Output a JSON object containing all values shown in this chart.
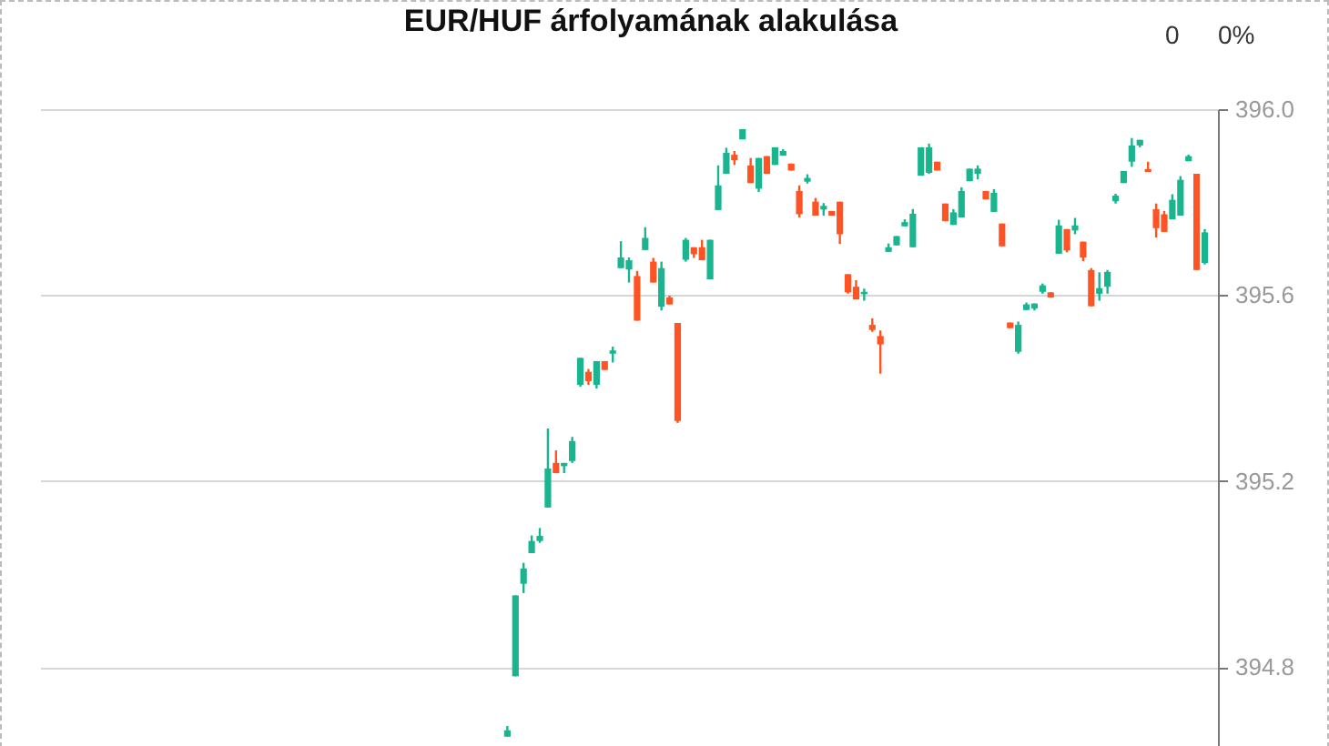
{
  "chart_data": {
    "type": "candlestick",
    "title": "EUR/HUF árfolyamának alakulása",
    "annotations": [
      "0",
      "0%"
    ],
    "categories": [
      null,
      null,
      null,
      null,
      null,
      null,
      null,
      null,
      null,
      null,
      null,
      null,
      null,
      null,
      null,
      null,
      null,
      null,
      null,
      null,
      null,
      null,
      null,
      null,
      null,
      null,
      null,
      null,
      null,
      null,
      null,
      null,
      null,
      null,
      null,
      null,
      null,
      null,
      null,
      null,
      null,
      null,
      null,
      null,
      null,
      null,
      null,
      null,
      null,
      null,
      null,
      null,
      null,
      null,
      null,
      null,
      null,
      null,
      null,
      null,
      null,
      null,
      null,
      null,
      null,
      null,
      null,
      null,
      null,
      null,
      null,
      null,
      null,
      null,
      null,
      null,
      null,
      null,
      null,
      null,
      null,
      null,
      null,
      null,
      null,
      null,
      null,
      null,
      null,
      null,
      null,
      null,
      null,
      null,
      null,
      null,
      null,
      null,
      null,
      null,
      null,
      null,
      null,
      null,
      null,
      null,
      null,
      null,
      null,
      null,
      null,
      null,
      null,
      null,
      null,
      null,
      null,
      null,
      null,
      null,
      null,
      null,
      null,
      null,
      null,
      null,
      null,
      null,
      null,
      null,
      null,
      null,
      null,
      null,
      null,
      null,
      null,
      null,
      null,
      null,
      null,
      null,
      null
    ],
    "ohlc": [
      null,
      null,
      null,
      null,
      null,
      null,
      null,
      null,
      null,
      null,
      null,
      null,
      null,
      null,
      null,
      null,
      null,
      null,
      null,
      null,
      null,
      null,
      null,
      null,
      null,
      null,
      null,
      null,
      null,
      null,
      null,
      null,
      null,
      null,
      null,
      null,
      null,
      null,
      null,
      null,
      null,
      null,
      null,
      null,
      null,
      null,
      null,
      null,
      null,
      null,
      null,
      null,
      null,
      null,
      null,
      null,
      [
        394.65,
        394.673,
        394.65,
        394.664
      ],
      [
        394.78,
        394.954,
        394.78,
        394.954
      ],
      [
        394.979,
        395.024,
        394.959,
        395.012
      ],
      [
        395.045,
        395.083,
        395.045,
        395.071
      ],
      [
        395.071,
        395.099,
        395.067,
        395.082
      ],
      [
        395.143,
        395.313,
        395.143,
        395.227
      ],
      [
        395.239,
        395.266,
        395.217,
        395.217
      ],
      [
        395.232,
        395.239,
        395.217,
        395.239
      ],
      [
        395.243,
        395.295,
        395.239,
        395.286
      ],
      [
        395.407,
        395.465,
        395.403,
        395.465
      ],
      [
        395.435,
        395.441,
        395.407,
        395.415
      ],
      [
        395.407,
        395.458,
        395.399,
        395.458
      ],
      [
        395.458,
        395.458,
        395.439,
        395.439
      ],
      [
        395.474,
        395.489,
        395.455,
        395.481
      ],
      [
        395.658,
        395.716,
        395.658,
        395.681
      ],
      [
        395.655,
        395.681,
        395.627,
        395.675
      ],
      [
        395.641,
        395.652,
        395.545,
        395.545
      ],
      [
        395.697,
        395.746,
        395.697,
        395.723
      ],
      [
        395.672,
        395.68,
        395.627,
        395.627
      ],
      [
        395.575,
        395.672,
        395.567,
        395.658
      ],
      [
        395.595,
        395.599,
        395.58,
        395.58
      ],
      [
        395.54,
        395.54,
        395.325,
        395.329
      ],
      [
        395.676,
        395.723,
        395.672,
        395.719
      ],
      [
        395.703,
        395.703,
        395.68,
        395.688
      ],
      [
        395.703,
        395.719,
        395.675,
        395.675
      ],
      [
        395.634,
        395.719,
        395.634,
        395.719
      ],
      [
        395.783,
        395.879,
        395.783,
        395.836
      ],
      [
        395.861,
        395.917,
        395.861,
        395.906
      ],
      [
        395.902,
        395.91,
        395.88,
        395.89
      ],
      [
        395.935,
        395.957,
        395.935,
        395.957
      ],
      [
        395.879,
        395.895,
        395.841,
        395.841
      ],
      [
        395.829,
        395.895,
        395.822,
        395.895
      ],
      [
        395.899,
        395.899,
        395.861,
        395.861
      ],
      [
        395.88,
        395.918,
        395.88,
        395.918
      ],
      [
        395.9,
        395.914,
        395.9,
        395.91
      ],
      [
        395.883,
        395.883,
        395.868,
        395.868
      ],
      [
        395.824,
        395.836,
        395.767,
        395.774
      ],
      [
        395.844,
        395.86,
        395.84,
        395.852
      ],
      [
        395.801,
        395.809,
        395.771,
        395.771
      ],
      [
        395.784,
        395.798,
        395.771,
        395.792
      ],
      [
        395.781,
        395.781,
        395.771,
        395.771
      ],
      [
        395.801,
        395.801,
        395.71,
        395.731
      ],
      [
        395.645,
        395.645,
        395.603,
        395.606
      ],
      [
        395.618,
        395.632,
        395.591,
        395.591
      ],
      [
        395.602,
        395.614,
        395.588,
        395.607
      ],
      [
        395.536,
        395.55,
        395.521,
        395.525
      ],
      [
        395.512,
        395.524,
        395.431,
        395.494
      ],
      [
        395.693,
        395.711,
        395.693,
        395.703
      ],
      [
        395.707,
        395.727,
        395.707,
        395.727
      ],
      [
        395.748,
        395.763,
        395.748,
        395.757
      ],
      [
        395.703,
        395.785,
        395.703,
        395.775
      ],
      [
        395.857,
        395.918,
        395.857,
        395.918
      ],
      [
        395.863,
        395.926,
        395.861,
        395.918
      ],
      [
        395.887,
        395.887,
        395.868,
        395.868
      ],
      [
        395.797,
        395.797,
        395.759,
        395.759
      ],
      [
        395.751,
        395.785,
        395.751,
        395.778
      ],
      [
        395.767,
        395.832,
        395.767,
        395.824
      ],
      [
        395.845,
        395.872,
        395.845,
        395.872
      ],
      [
        395.861,
        395.879,
        395.849,
        395.872
      ],
      [
        395.824,
        395.824,
        395.806,
        395.806
      ],
      [
        395.779,
        395.828,
        395.779,
        395.82
      ],
      [
        395.754,
        395.754,
        395.705,
        395.705
      ],
      [
        395.541,
        395.541,
        395.529,
        395.529
      ],
      [
        395.478,
        395.543,
        395.474,
        395.536
      ],
      [
        395.568,
        395.584,
        395.568,
        395.58
      ],
      [
        395.571,
        395.582,
        395.567,
        395.582
      ],
      [
        395.607,
        395.625,
        395.603,
        395.621
      ],
      [
        395.606,
        395.606,
        395.595,
        395.595
      ],
      [
        395.689,
        395.762,
        395.689,
        395.75
      ],
      [
        395.742,
        395.742,
        395.692,
        395.696
      ],
      [
        395.739,
        395.766,
        395.731,
        395.75
      ],
      [
        395.715,
        395.715,
        395.673,
        395.681
      ],
      [
        395.654,
        395.658,
        395.576,
        395.576
      ],
      [
        395.603,
        395.649,
        395.588,
        395.615
      ],
      [
        395.618,
        395.654,
        395.603,
        395.65
      ],
      [
        395.802,
        395.818,
        395.797,
        395.814
      ],
      [
        395.841,
        395.867,
        395.841,
        395.867
      ],
      [
        395.887,
        395.938,
        395.876,
        395.922
      ],
      [
        395.922,
        395.934,
        395.918,
        395.934
      ],
      [
        395.871,
        395.887,
        395.865,
        395.865
      ],
      [
        395.785,
        395.797,
        395.724,
        395.744
      ],
      [
        395.774,
        395.781,
        395.736,
        395.736
      ],
      [
        395.763,
        395.817,
        395.763,
        395.805
      ],
      [
        395.771,
        395.856,
        395.771,
        395.848
      ],
      [
        395.888,
        395.902,
        395.888,
        395.899
      ],
      [
        395.861,
        395.861,
        395.654,
        395.654
      ],
      [
        395.669,
        395.742,
        395.666,
        395.735
      ]
    ],
    "colors": [
      null,
      null,
      null,
      null,
      null,
      null,
      null,
      null,
      null,
      null,
      null,
      null,
      null,
      null,
      null,
      null,
      null,
      null,
      null,
      null,
      null,
      null,
      null,
      null,
      null,
      null,
      null,
      null,
      null,
      null,
      null,
      null,
      null,
      null,
      null,
      null,
      null,
      null,
      null,
      null,
      null,
      null,
      null,
      null,
      null,
      null,
      null,
      null,
      null,
      null,
      null,
      null,
      null,
      null,
      null,
      null,
      "#1ab48f",
      "#1ab48f",
      "#1ab48f",
      "#1ab48f",
      "#1ab48f",
      "#1ab48f",
      "#fe5424",
      "#1ab48f",
      "#1ab48f",
      "#1ab48f",
      "#fe5424",
      "#1ab48f",
      "#fe5424",
      "#1ab48f",
      "#1ab48f",
      "#1ab48f",
      "#fe5424",
      "#1ab48f",
      "#fe5424",
      "#1ab48f",
      "#fe5424",
      "#fe5424",
      "#1ab48f",
      "#fe5424",
      "#fe5424",
      "#1ab48f",
      "#1ab48f",
      "#1ab48f",
      "#fe5424",
      "#1ab48f",
      "#fe5424",
      "#1ab48f",
      "#fe5424",
      "#1ab48f",
      "#1ab48f",
      "#fe5424",
      "#fe5424",
      "#1ab48f",
      "#fe5424",
      "#1ab48f",
      "#fe5424",
      "#fe5424",
      "#fe5424",
      "#fe5424",
      "#1ab48f",
      "#fe5424",
      "#fe5424",
      "#1ab48f",
      "#1ab48f",
      "#1ab48f",
      "#1ab48f",
      "#1ab48f",
      "#1ab48f",
      "#fe5424",
      "#fe5424",
      "#1ab48f",
      "#1ab48f",
      "#1ab48f",
      "#1ab48f",
      "#fe5424",
      "#1ab48f",
      "#fe5424",
      "#fe5424",
      "#1ab48f",
      "#1ab48f",
      "#1ab48f",
      "#1ab48f",
      "#fe5424",
      "#1ab48f",
      "#fe5424",
      "#1ab48f",
      "#fe5424",
      "#fe5424",
      "#1ab48f",
      "#1ab48f",
      "#1ab48f",
      "#1ab48f",
      "#1ab48f",
      "#1ab48f",
      "#fe5424",
      "#fe5424",
      "#fe5424",
      "#1ab48f",
      "#1ab48f",
      "#1ab48f",
      "#fe5424",
      "#1ab48f"
    ],
    "ylim": [
      394.63,
      396.0
    ],
    "yticks": [
      394.8,
      395.2,
      395.6,
      {
        "value": 396.0,
        "label": "396.0"
      }
    ],
    "grid": "y"
  }
}
